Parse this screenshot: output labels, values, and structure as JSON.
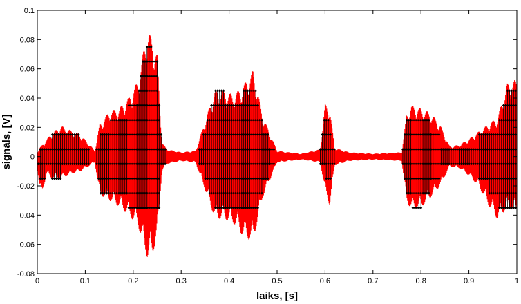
{
  "chart_data": {
    "type": "line",
    "title": "",
    "xlabel": "laiks, [s]",
    "ylabel": "signāls, [V]",
    "xlim": [
      0,
      1
    ],
    "ylim": [
      -0.08,
      0.1
    ],
    "xticks": [
      0,
      0.1,
      0.2,
      0.3,
      0.4,
      0.5,
      0.6,
      0.7,
      0.8,
      0.9,
      1
    ],
    "xtick_labels": [
      "0",
      "0.1",
      "0.2",
      "0.3",
      "0.4",
      "0.5",
      "0.6",
      "0.7",
      "0.8",
      "0.9",
      "1"
    ],
    "yticks": [
      -0.08,
      -0.06,
      -0.04,
      -0.02,
      0,
      0.02,
      0.04,
      0.06,
      0.08,
      0.1
    ],
    "ytick_labels": [
      "-0.08",
      "-0.06",
      "-0.04",
      "-0.02",
      "0",
      "0.02",
      "0.04",
      "0.06",
      "0.08",
      "0.1"
    ],
    "grid": false,
    "series": [
      {
        "role": "signal",
        "color": "#ff0000",
        "style": "line",
        "x": [
          0.0,
          0.005,
          0.01,
          0.015,
          0.02,
          0.03,
          0.05,
          0.07,
          0.09,
          0.11,
          0.12,
          0.13,
          0.15,
          0.17,
          0.19,
          0.21,
          0.22,
          0.23,
          0.24,
          0.25,
          0.26,
          0.27,
          0.3,
          0.33,
          0.37,
          0.39,
          0.41,
          0.43,
          0.45,
          0.47,
          0.5,
          0.55,
          0.59,
          0.6,
          0.61,
          0.62,
          0.65,
          0.7,
          0.76,
          0.77,
          0.78,
          0.8,
          0.82,
          0.84,
          0.86,
          0.88,
          0.9,
          0.92,
          0.94,
          0.96,
          0.98,
          1.0
        ],
        "envelope_max": [
          0.003,
          0.006,
          0.008,
          0.01,
          0.012,
          0.016,
          0.021,
          0.018,
          0.015,
          0.008,
          0.004,
          0.022,
          0.031,
          0.033,
          0.04,
          0.052,
          0.07,
          0.087,
          0.08,
          0.07,
          0.01,
          0.005,
          0.003,
          0.004,
          0.045,
          0.045,
          0.042,
          0.049,
          0.059,
          0.028,
          0.004,
          0.002,
          0.005,
          0.036,
          0.033,
          0.006,
          0.003,
          0.002,
          0.003,
          0.029,
          0.035,
          0.033,
          0.03,
          0.022,
          0.007,
          0.008,
          0.012,
          0.017,
          0.022,
          0.027,
          0.05,
          0.053
        ],
        "envelope_min": [
          -0.008,
          -0.022,
          -0.025,
          -0.018,
          -0.012,
          -0.015,
          -0.015,
          -0.012,
          -0.01,
          -0.006,
          -0.004,
          -0.026,
          -0.03,
          -0.034,
          -0.04,
          -0.047,
          -0.06,
          -0.07,
          -0.067,
          -0.055,
          -0.01,
          -0.005,
          -0.003,
          -0.004,
          -0.042,
          -0.043,
          -0.046,
          -0.055,
          -0.058,
          -0.028,
          -0.004,
          -0.002,
          -0.004,
          -0.023,
          -0.034,
          -0.006,
          -0.003,
          -0.002,
          -0.003,
          -0.031,
          -0.036,
          -0.035,
          -0.028,
          -0.02,
          -0.007,
          -0.008,
          -0.013,
          -0.02,
          -0.033,
          -0.043,
          -0.035,
          -0.038
        ]
      },
      {
        "role": "quantized samples",
        "color": "#000000",
        "style": "markers",
        "levels": [
          -0.035,
          -0.025,
          -0.015,
          -0.005,
          0.005,
          0.015,
          0.025,
          0.035,
          0.045,
          0.055,
          0.065,
          0.075,
          0.085
        ],
        "x": [
          0.0,
          0.005,
          0.01,
          0.015,
          0.02,
          0.03,
          0.05,
          0.07,
          0.09,
          0.11,
          0.12,
          0.13,
          0.15,
          0.17,
          0.19,
          0.21,
          0.22,
          0.23,
          0.24,
          0.25,
          0.26,
          0.27,
          0.3,
          0.33,
          0.37,
          0.39,
          0.41,
          0.43,
          0.45,
          0.47,
          0.5,
          0.55,
          0.59,
          0.6,
          0.61,
          0.62,
          0.65,
          0.7,
          0.76,
          0.77,
          0.78,
          0.8,
          0.82,
          0.84,
          0.86,
          0.88,
          0.9,
          0.92,
          0.94,
          0.96,
          0.98,
          1.0
        ],
        "max_level": [
          0.0,
          0.005,
          0.005,
          0.005,
          0.005,
          0.015,
          0.015,
          0.015,
          0.015,
          0.005,
          0.0,
          0.015,
          0.025,
          0.025,
          0.035,
          0.045,
          0.065,
          0.085,
          0.075,
          0.065,
          0.005,
          0.005,
          0.0,
          0.0,
          0.045,
          0.045,
          0.035,
          0.045,
          0.055,
          0.025,
          0.0,
          0.0,
          0.005,
          0.035,
          0.025,
          0.005,
          0.0,
          0.0,
          0.0,
          0.025,
          0.035,
          0.025,
          0.025,
          0.015,
          0.005,
          0.005,
          0.005,
          0.015,
          0.015,
          0.025,
          0.045,
          0.045
        ],
        "min_level": [
          0.0,
          -0.015,
          -0.015,
          -0.015,
          -0.005,
          -0.015,
          -0.015,
          -0.005,
          -0.005,
          -0.005,
          0.0,
          -0.025,
          -0.025,
          -0.025,
          -0.035,
          -0.045,
          -0.055,
          -0.065,
          -0.065,
          -0.055,
          -0.005,
          -0.005,
          0.0,
          0.0,
          -0.035,
          -0.035,
          -0.045,
          -0.055,
          -0.055,
          -0.025,
          0.0,
          0.0,
          -0.005,
          -0.015,
          -0.025,
          -0.005,
          0.0,
          0.0,
          0.0,
          -0.025,
          -0.035,
          -0.035,
          -0.025,
          -0.015,
          -0.005,
          -0.005,
          -0.005,
          -0.015,
          -0.025,
          -0.035,
          -0.035,
          -0.035
        ]
      }
    ]
  }
}
